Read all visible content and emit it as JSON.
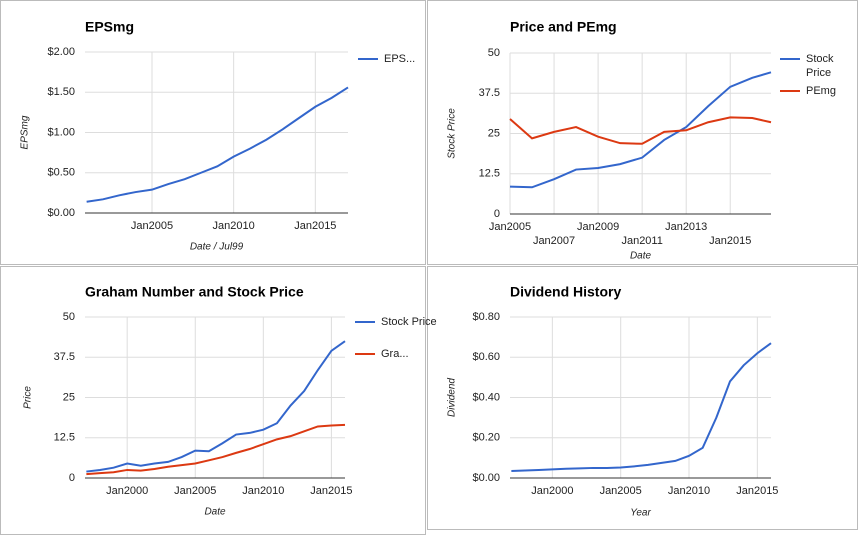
{
  "chart_data": [
    {
      "type": "line",
      "title": "EPSmg",
      "x_label": "Date / Jul99",
      "y_label": "EPSmg",
      "x": [
        2001,
        2002,
        2003,
        2004,
        2005,
        2006,
        2007,
        2008,
        2009,
        2010,
        2011,
        2012,
        2013,
        2014,
        2015,
        2016,
        2017
      ],
      "series": [
        {
          "name": "EPS...",
          "color": "#3366cc",
          "values": [
            0.14,
            0.17,
            0.22,
            0.26,
            0.29,
            0.36,
            0.42,
            0.5,
            0.58,
            0.7,
            0.8,
            0.91,
            1.04,
            1.18,
            1.32,
            1.43,
            1.56
          ]
        }
      ],
      "xlim": [
        2000.9,
        2017
      ],
      "ylim": [
        0,
        2
      ],
      "xticks": [
        {
          "value": 2005,
          "label": "Jan2005"
        },
        {
          "value": 2010,
          "label": "Jan2010"
        },
        {
          "value": 2015,
          "label": "Jan2015"
        }
      ],
      "yticks": [
        {
          "value": 0,
          "label": "$0.00"
        },
        {
          "value": 0.5,
          "label": "$0.50"
        },
        {
          "value": 1,
          "label": "$1.00"
        },
        {
          "value": 1.5,
          "label": "$1.50"
        },
        {
          "value": 2,
          "label": "$2.00"
        }
      ],
      "grid": true,
      "legend": "right"
    },
    {
      "type": "line",
      "title": "Price and PEmg",
      "x_label": "Date",
      "y_label": "Stock Price",
      "x": [
        2005,
        2006,
        2007,
        2008,
        2009,
        2010,
        2011,
        2012,
        2013,
        2014,
        2015,
        2016,
        2016.85
      ],
      "series": [
        {
          "name": "Stock Price",
          "color": "#3366cc",
          "values": [
            8.5,
            8.3,
            10.8,
            13.8,
            14.3,
            15.5,
            17.5,
            23,
            27,
            33.5,
            39.5,
            42.3,
            44
          ]
        },
        {
          "name": "PEmg",
          "color": "#dc3912",
          "values": [
            29.5,
            23.5,
            25.5,
            27,
            24,
            22,
            21.8,
            25.5,
            26,
            28.5,
            30,
            29.8,
            28.5
          ]
        }
      ],
      "xlim": [
        2005,
        2016.85
      ],
      "ylim": [
        0,
        50
      ],
      "xticks": [
        {
          "value": 2005,
          "label": "Jan2005"
        },
        {
          "value": 2007,
          "label": "Jan2007"
        },
        {
          "value": 2009,
          "label": "Jan2009"
        },
        {
          "value": 2011,
          "label": "Jan2011"
        },
        {
          "value": 2013,
          "label": "Jan2013"
        },
        {
          "value": 2015,
          "label": "Jan2015"
        }
      ],
      "yticks": [
        0,
        12.5,
        25,
        37.5,
        50
      ],
      "grid": true,
      "legend": "right"
    },
    {
      "type": "line",
      "title": "Graham Number and Stock Price",
      "x_label": "Date",
      "y_label": "Price",
      "x": [
        1997,
        1998,
        1999,
        2000,
        2001,
        2002,
        2003,
        2004,
        2005,
        2006,
        2007,
        2008,
        2009,
        2010,
        2011,
        2012,
        2013,
        2014,
        2015,
        2016
      ],
      "series": [
        {
          "name": "Stock Price",
          "color": "#3366cc",
          "values": [
            2,
            2.5,
            3.2,
            4.5,
            3.8,
            4.5,
            5,
            6.5,
            8.5,
            8.3,
            10.8,
            13.5,
            14,
            15,
            17,
            22.5,
            27,
            33.5,
            39.5,
            42.5
          ]
        },
        {
          "name": "Gra...",
          "color": "#dc3912",
          "values": [
            1.2,
            1.5,
            1.8,
            2.5,
            2.3,
            2.8,
            3.5,
            4,
            4.5,
            5.5,
            6.5,
            7.8,
            9,
            10.5,
            12,
            13,
            14.5,
            16,
            16.3,
            16.5
          ]
        }
      ],
      "xlim": [
        1996.9,
        2016
      ],
      "ylim": [
        0,
        50
      ],
      "xticks": [
        {
          "value": 2000,
          "label": "Jan2000"
        },
        {
          "value": 2005,
          "label": "Jan2005"
        },
        {
          "value": 2010,
          "label": "Jan2010"
        },
        {
          "value": 2015,
          "label": "Jan2015"
        }
      ],
      "yticks": [
        0,
        12.5,
        25,
        37.5,
        50
      ],
      "grid": true,
      "legend": "right"
    },
    {
      "type": "line",
      "title": "Dividend History",
      "x_label": "Year",
      "y_label": "Dividend",
      "x": [
        1997,
        1998,
        1999,
        2000,
        2001,
        2002,
        2003,
        2004,
        2005,
        2006,
        2007,
        2008,
        2009,
        2010,
        2011,
        2012,
        2013,
        2014,
        2015,
        2016
      ],
      "series": [
        {
          "color": "#3366cc",
          "values": [
            0.035,
            0.037,
            0.04,
            0.043,
            0.046,
            0.048,
            0.05,
            0.05,
            0.052,
            0.058,
            0.065,
            0.075,
            0.085,
            0.11,
            0.15,
            0.3,
            0.48,
            0.56,
            0.62,
            0.67
          ]
        }
      ],
      "xlim": [
        1996.9,
        2016
      ],
      "ylim": [
        0,
        0.8
      ],
      "xticks": [
        {
          "value": 2000,
          "label": "Jan2000"
        },
        {
          "value": 2005,
          "label": "Jan2005"
        },
        {
          "value": 2010,
          "label": "Jan2010"
        },
        {
          "value": 2015,
          "label": "Jan2015"
        }
      ],
      "yticks": [
        {
          "value": 0,
          "label": "$0.00"
        },
        {
          "value": 0.2,
          "label": "$0.20"
        },
        {
          "value": 0.4,
          "label": "$0.40"
        },
        {
          "value": 0.6,
          "label": "$0.60"
        },
        {
          "value": 0.8,
          "label": "$0.80"
        }
      ],
      "grid": true
    }
  ]
}
